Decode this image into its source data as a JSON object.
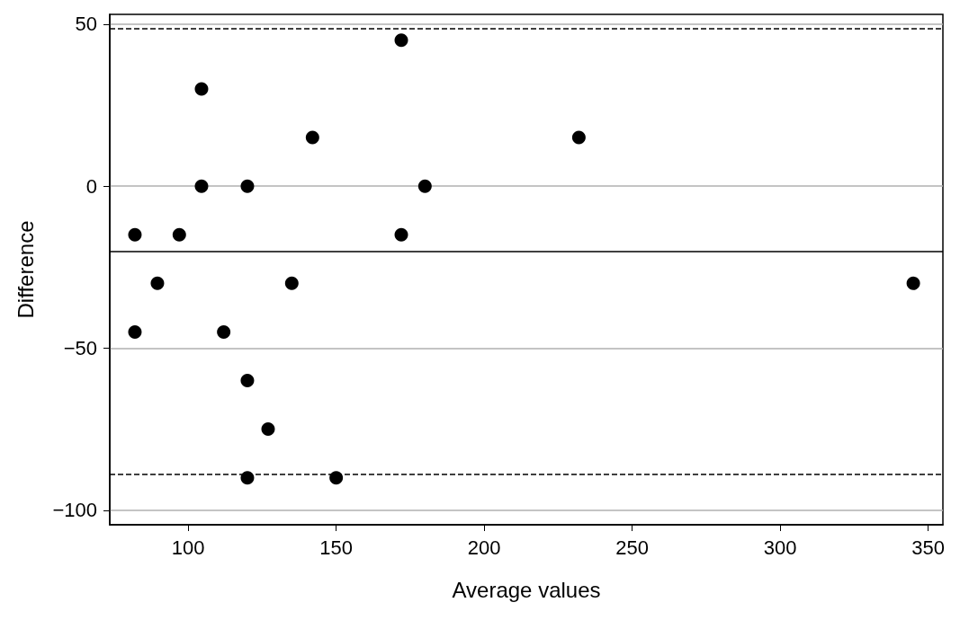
{
  "chart_data": {
    "type": "scatter",
    "xlabel": "Average values",
    "ylabel": "Difference",
    "x": [
      82,
      82,
      89.6,
      97,
      104.5,
      104.5,
      112,
      120,
      120,
      120,
      127,
      135,
      142,
      150,
      172,
      172,
      180,
      232,
      345
    ],
    "series": [
      {
        "color": "#000000",
        "values": [
          -15,
          -45,
          -30,
          -15,
          30,
          0,
          -45,
          0,
          -60,
          -90,
          -75,
          -30,
          15,
          -90,
          45,
          -15,
          0,
          15,
          -30
        ]
      }
    ],
    "xlim": [
      73.5,
      355
    ],
    "xticks": [
      100,
      150,
      200,
      250,
      300,
      350
    ],
    "ylim": [
      -104.5,
      53
    ],
    "yticks": [
      -100,
      -50,
      0,
      50
    ],
    "ref_lines": [
      {
        "axis": "y",
        "value": 48.5,
        "color": "#000000",
        "line_style": "dashed"
      },
      {
        "axis": "y",
        "value": -20,
        "color": "#000000",
        "line_style": "solid"
      },
      {
        "axis": "y",
        "value": -89,
        "color": "#000000",
        "line_style": "dashed"
      }
    ],
    "grid": "y",
    "marker": "circle"
  }
}
